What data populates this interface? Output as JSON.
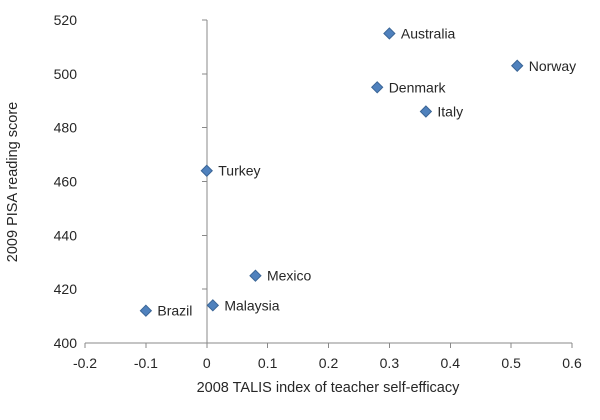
{
  "chart_data": {
    "type": "scatter",
    "title": "",
    "xlabel": "2008 TALIS index of teacher self-efficacy",
    "ylabel": "2009 PISA reading score",
    "xlim": [
      -0.2,
      0.6
    ],
    "ylim": [
      400,
      520
    ],
    "x_ticks": [
      {
        "v": -0.2,
        "label": "-0.2"
      },
      {
        "v": -0.1,
        "label": "-0.1"
      },
      {
        "v": 0,
        "label": "0"
      },
      {
        "v": 0.1,
        "label": "0.1"
      },
      {
        "v": 0.2,
        "label": "0.2"
      },
      {
        "v": 0.3,
        "label": "0.3"
      },
      {
        "v": 0.4,
        "label": "0.4"
      },
      {
        "v": 0.5,
        "label": "0.5"
      },
      {
        "v": 0.6,
        "label": "0.6"
      }
    ],
    "y_ticks": [
      {
        "v": 400,
        "label": "400"
      },
      {
        "v": 420,
        "label": "420"
      },
      {
        "v": 440,
        "label": "440"
      },
      {
        "v": 460,
        "label": "460"
      },
      {
        "v": 480,
        "label": "480"
      },
      {
        "v": 500,
        "label": "500"
      },
      {
        "v": 520,
        "label": "520"
      }
    ],
    "grid": false,
    "legend": "none",
    "marker": {
      "shape": "diamond",
      "fill": "#4f81bd",
      "stroke": "#3a6596",
      "size": 11
    },
    "colors": {
      "axis": "#898989",
      "text": "#262626"
    },
    "points": [
      {
        "name": "Australia",
        "x": 0.3,
        "y": 515
      },
      {
        "name": "Norway",
        "x": 0.51,
        "y": 503
      },
      {
        "name": "Denmark",
        "x": 0.28,
        "y": 495
      },
      {
        "name": "Italy",
        "x": 0.36,
        "y": 486
      },
      {
        "name": "Turkey",
        "x": 0.0,
        "y": 464
      },
      {
        "name": "Mexico",
        "x": 0.08,
        "y": 425
      },
      {
        "name": "Malaysia",
        "x": 0.01,
        "y": 414
      },
      {
        "name": "Brazil",
        "x": -0.1,
        "y": 412
      }
    ]
  }
}
